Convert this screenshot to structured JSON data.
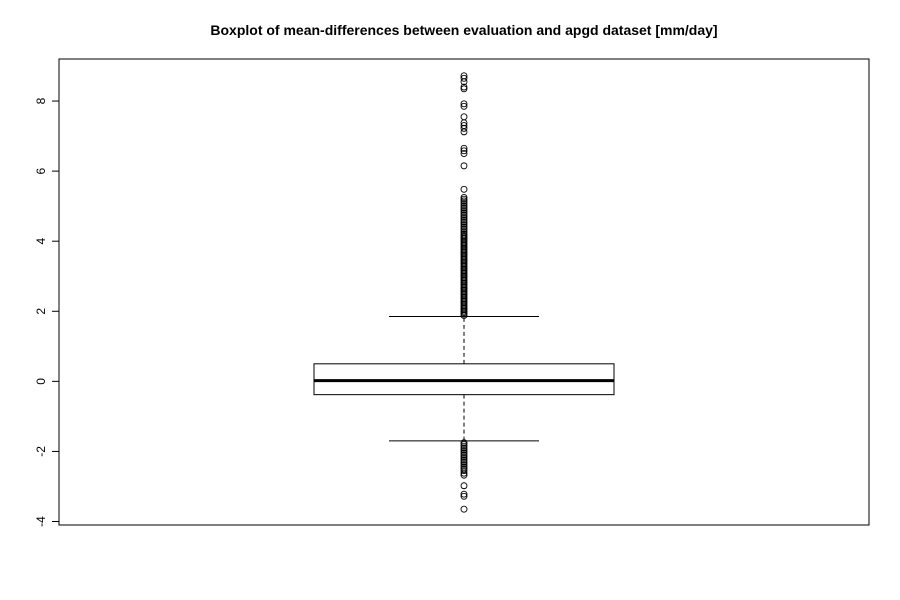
{
  "chart_data": {
    "type": "boxplot",
    "title": "Boxplot of mean-differences between evaluation and apgd dataset [mm/day]",
    "xlabel": "",
    "ylabel": "",
    "ylim": [
      -4.1,
      9.2
    ],
    "y_ticks": [
      -4,
      -2,
      0,
      2,
      4,
      6,
      8
    ],
    "y_tick_labels": [
      "-4",
      "-2",
      "0",
      "2",
      "4",
      "6",
      "8"
    ],
    "grid": false,
    "legend": "none",
    "box": {
      "min_whisker": -1.7,
      "q1": -0.38,
      "median": 0.02,
      "q3": 0.5,
      "max_whisker": 1.85
    },
    "outliers_upper": [
      1.88,
      1.92,
      1.96,
      2.0,
      2.04,
      2.08,
      2.12,
      2.16,
      2.2,
      2.24,
      2.28,
      2.32,
      2.36,
      2.4,
      2.44,
      2.48,
      2.52,
      2.56,
      2.6,
      2.64,
      2.68,
      2.72,
      2.76,
      2.8,
      2.84,
      2.88,
      2.92,
      2.96,
      3.0,
      3.04,
      3.08,
      3.12,
      3.16,
      3.2,
      3.24,
      3.28,
      3.32,
      3.36,
      3.4,
      3.44,
      3.48,
      3.52,
      3.56,
      3.6,
      3.64,
      3.68,
      3.72,
      3.76,
      3.8,
      3.84,
      3.88,
      3.92,
      3.96,
      4.0,
      4.04,
      4.08,
      4.12,
      4.16,
      4.2,
      4.25,
      4.3,
      4.35,
      4.4,
      4.45,
      4.5,
      4.55,
      4.6,
      4.65,
      4.7,
      4.75,
      4.8,
      4.85,
      4.9,
      4.95,
      5.0,
      5.05,
      5.1,
      5.15,
      5.2,
      5.25,
      5.48,
      6.15,
      6.5,
      6.58,
      6.65,
      7.12,
      7.22,
      7.3,
      7.38,
      7.55,
      7.85,
      7.92,
      8.35,
      8.4,
      8.55,
      8.65,
      8.72
    ],
    "outliers_lower": [
      -1.75,
      -1.8,
      -1.85,
      -1.9,
      -1.95,
      -2.0,
      -2.05,
      -2.1,
      -2.15,
      -2.2,
      -2.25,
      -2.3,
      -2.35,
      -2.4,
      -2.45,
      -2.5,
      -2.55,
      -2.62,
      -2.68,
      -2.98,
      -3.22,
      -3.28,
      -3.65
    ]
  }
}
